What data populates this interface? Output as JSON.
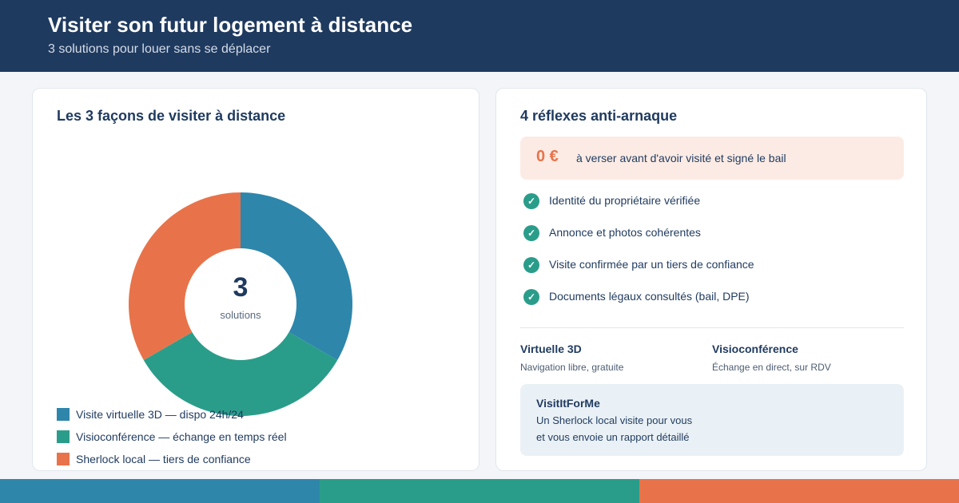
{
  "header": {
    "title": "Visiter son futur logement à distance",
    "subtitle": "3 solutions pour louer sans se déplacer"
  },
  "left_card": {
    "title": "Les 3 façons de visiter à distance",
    "center_number": "3",
    "center_label": "solutions"
  },
  "chart_data": {
    "type": "pie",
    "style": "donut",
    "categories": [
      "Visite virtuelle 3D — dispo 24h/24",
      "Visioconférence — échange en temps réel",
      "Sherlock local — tiers de confiance"
    ],
    "values": [
      1,
      1,
      1
    ],
    "colors": [
      "#2e86ab",
      "#2a9d8a",
      "#e8734a"
    ],
    "start_angle_deg": 0,
    "legend": "bottom-left"
  },
  "right_card": {
    "title": "4 réflexes anti-arnaque",
    "alert": {
      "value": "0 €",
      "text": "à verser avant d'avoir visité et signé le bail"
    },
    "checks": [
      "Identité du propriétaire vérifiée",
      "Annonce et photos cohérentes",
      "Visite confirmée par un tiers de confiance",
      "Documents légaux consultés (bail, DPE)"
    ],
    "check_icon": "check-icon",
    "methods": [
      {
        "name": "Virtuelle 3D",
        "desc": "Navigation libre, gratuite"
      },
      {
        "name": "Visioconférence",
        "desc": "Échange en direct, sur RDV"
      }
    ],
    "feature": {
      "name": "VisitItForMe",
      "lines": [
        "Un Sherlock local visite pour vous",
        "et vous envoie un rapport détaillé"
      ]
    }
  },
  "footer_colors": [
    "#2e86ab",
    "#2a9d8a",
    "#e8734a"
  ]
}
